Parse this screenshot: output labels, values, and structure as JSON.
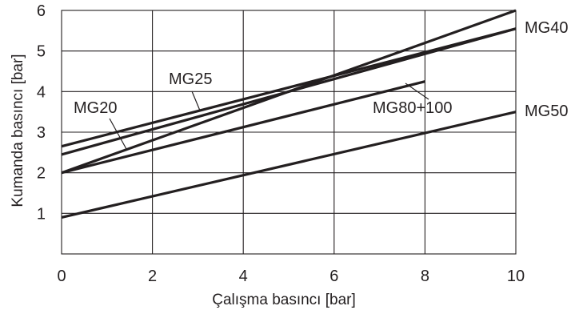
{
  "chart_data": {
    "type": "line",
    "title": "",
    "xlabel": "Çalışma basıncı [bar]",
    "ylabel": "Kumanda basıncı [bar]",
    "xlim": [
      0,
      10
    ],
    "ylim": [
      0,
      6
    ],
    "x_ticks": [
      0,
      2,
      4,
      6,
      8,
      10
    ],
    "y_ticks": [
      1,
      2,
      3,
      4,
      5,
      6
    ],
    "x_tick_labels": [
      "0",
      "2",
      "4",
      "6",
      "8",
      "10"
    ],
    "y_tick_labels": [
      "1",
      "2",
      "3",
      "4",
      "5",
      "6"
    ],
    "grid": true,
    "legend": "none",
    "colors": {
      "line": "#231f20",
      "grid": "#231f20",
      "background": "#ffffff"
    },
    "series": [
      {
        "name": "MG20",
        "x": [
          0,
          10
        ],
        "y": [
          2.0,
          6.0
        ]
      },
      {
        "name": "MG25",
        "x": [
          0,
          10
        ],
        "y": [
          2.65,
          5.55
        ]
      },
      {
        "name": "MG40",
        "x": [
          0,
          10
        ],
        "y": [
          2.45,
          5.55
        ]
      },
      {
        "name": "MG80+100",
        "x": [
          0,
          8
        ],
        "y": [
          2.0,
          4.25
        ]
      },
      {
        "name": "MG50",
        "x": [
          0,
          10
        ],
        "y": [
          0.9,
          3.5
        ]
      }
    ]
  }
}
